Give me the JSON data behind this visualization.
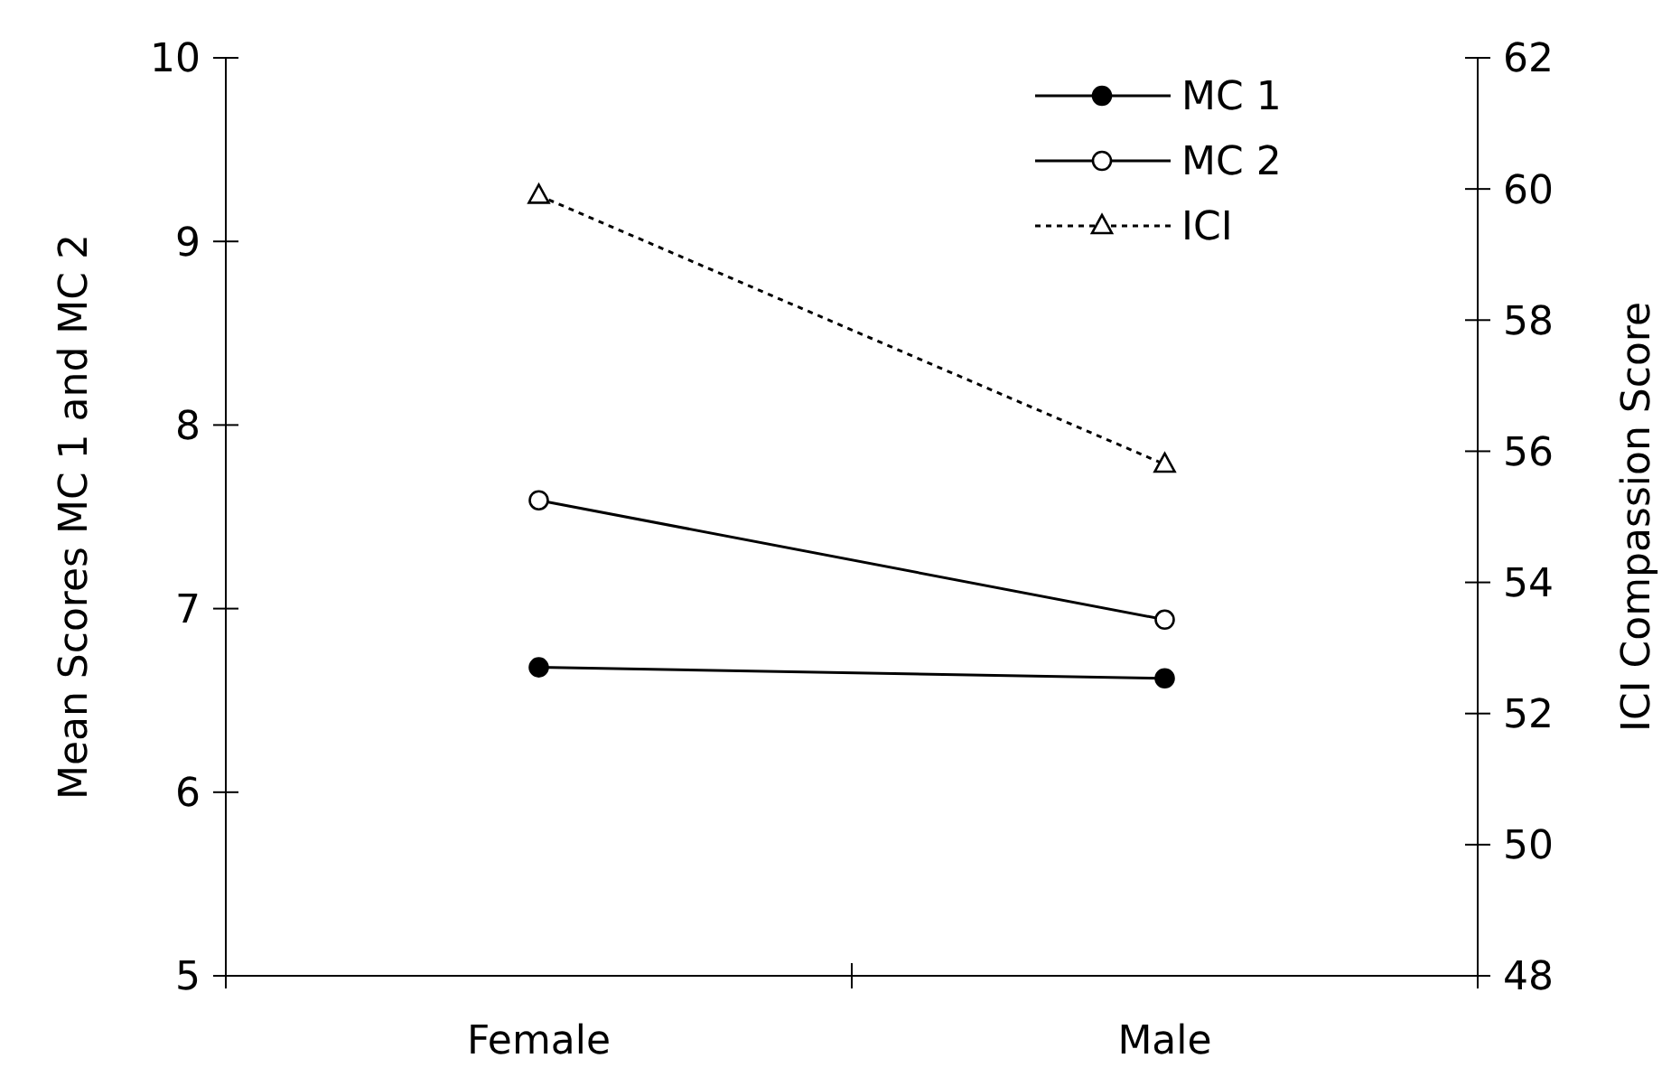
{
  "chart_data": {
    "type": "line",
    "categories": [
      "Female",
      "Male"
    ],
    "ylabel": "Mean Scores MC 1 and MC 2",
    "y2label": "ICI Compassion Score",
    "ylim": [
      5,
      10
    ],
    "yticks": [
      5,
      6,
      7,
      8,
      9,
      10
    ],
    "y2lim": [
      48,
      62
    ],
    "y2ticks": [
      48,
      50,
      52,
      54,
      56,
      58,
      60,
      62
    ],
    "legend": "top right",
    "grid": false,
    "series": [
      {
        "name": "MC 1",
        "color": "#000000",
        "values": [
          6.68,
          6.62
        ],
        "marker": "circle",
        "line_style": "solid"
      },
      {
        "name": "MC 2",
        "color": "#000000",
        "values": [
          7.59,
          6.94
        ],
        "marker": "circle",
        "line_style": "solid"
      },
      {
        "name": "ICI",
        "color": "#000000",
        "values": [
          59.9,
          55.8
        ],
        "marker": "triangle",
        "line_style": "dotted",
        "axis": "y2"
      }
    ]
  }
}
